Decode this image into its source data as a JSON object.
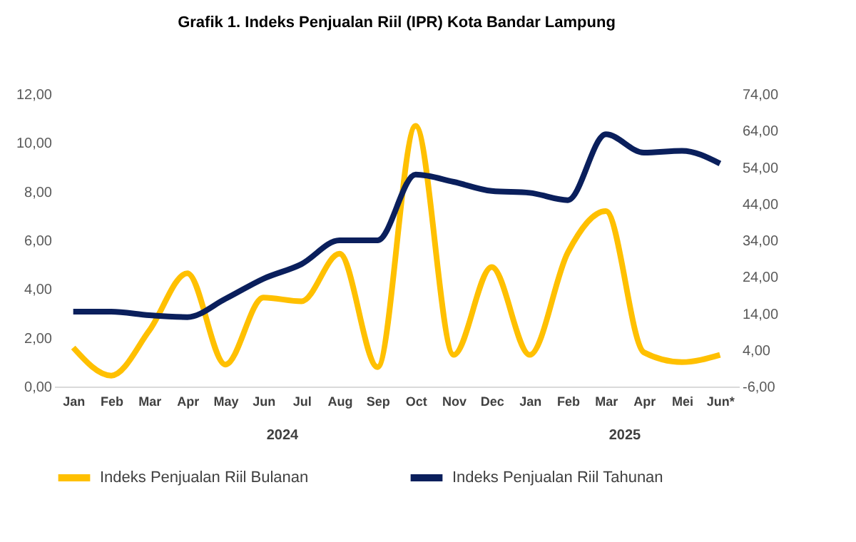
{
  "chart_data": {
    "type": "line",
    "title": "Grafik 1. Indeks Penjualan Riil (IPR) Kota Bandar Lampung",
    "categories": [
      "Jan",
      "Feb",
      "Mar",
      "Apr",
      "May",
      "Jun",
      "Jul",
      "Aug",
      "Sep",
      "Oct",
      "Nov",
      "Dec",
      "Jan",
      "Feb",
      "Mar",
      "Apr",
      "Mei",
      "Jun*"
    ],
    "series": [
      {
        "name": "Indeks Penjualan Riil Bulanan",
        "color": "#ffc000",
        "values": [
          1.6,
          0.45,
          2.3,
          4.65,
          0.9,
          3.65,
          3.5,
          5.45,
          0.8,
          10.7,
          1.3,
          4.9,
          1.3,
          5.5,
          7.2,
          1.4,
          1.0,
          1.3
        ]
      },
      {
        "name": "Indeks Penjualan Riil Tahunan",
        "color": "#0a1f5c",
        "axis": "y2",
        "values": [
          14.5,
          14.5,
          13.5,
          13,
          18,
          23.5,
          27.5,
          34,
          34,
          52,
          50,
          47.5,
          47,
          45,
          63,
          58,
          58.5,
          55
        ]
      }
    ],
    "ylim": [
      0,
      12
    ],
    "yticks": [
      {
        "value": 0,
        "label": "0,00"
      },
      {
        "value": 2,
        "label": "2,00"
      },
      {
        "value": 4,
        "label": "4,00"
      },
      {
        "value": 6,
        "label": "6,00"
      },
      {
        "value": 8,
        "label": "8,00"
      },
      {
        "value": 10,
        "label": "10,00"
      },
      {
        "value": 12,
        "label": "12,00"
      }
    ],
    "y2lim": [
      -6,
      74
    ],
    "y2ticks": [
      {
        "value": -6,
        "label": "-6,00"
      },
      {
        "value": 4,
        "label": "4,00"
      },
      {
        "value": 14,
        "label": "14,00"
      },
      {
        "value": 24,
        "label": "24,00"
      },
      {
        "value": 34,
        "label": "34,00"
      },
      {
        "value": 44,
        "label": "44,00"
      },
      {
        "value": 54,
        "label": "54,00"
      },
      {
        "value": 64,
        "label": "64,00"
      },
      {
        "value": 74,
        "label": "74,00"
      }
    ],
    "annotations": [
      "2024",
      "2025"
    ],
    "grid": false,
    "legend": "bottom",
    "line_style": "solid",
    "marker": "none"
  }
}
